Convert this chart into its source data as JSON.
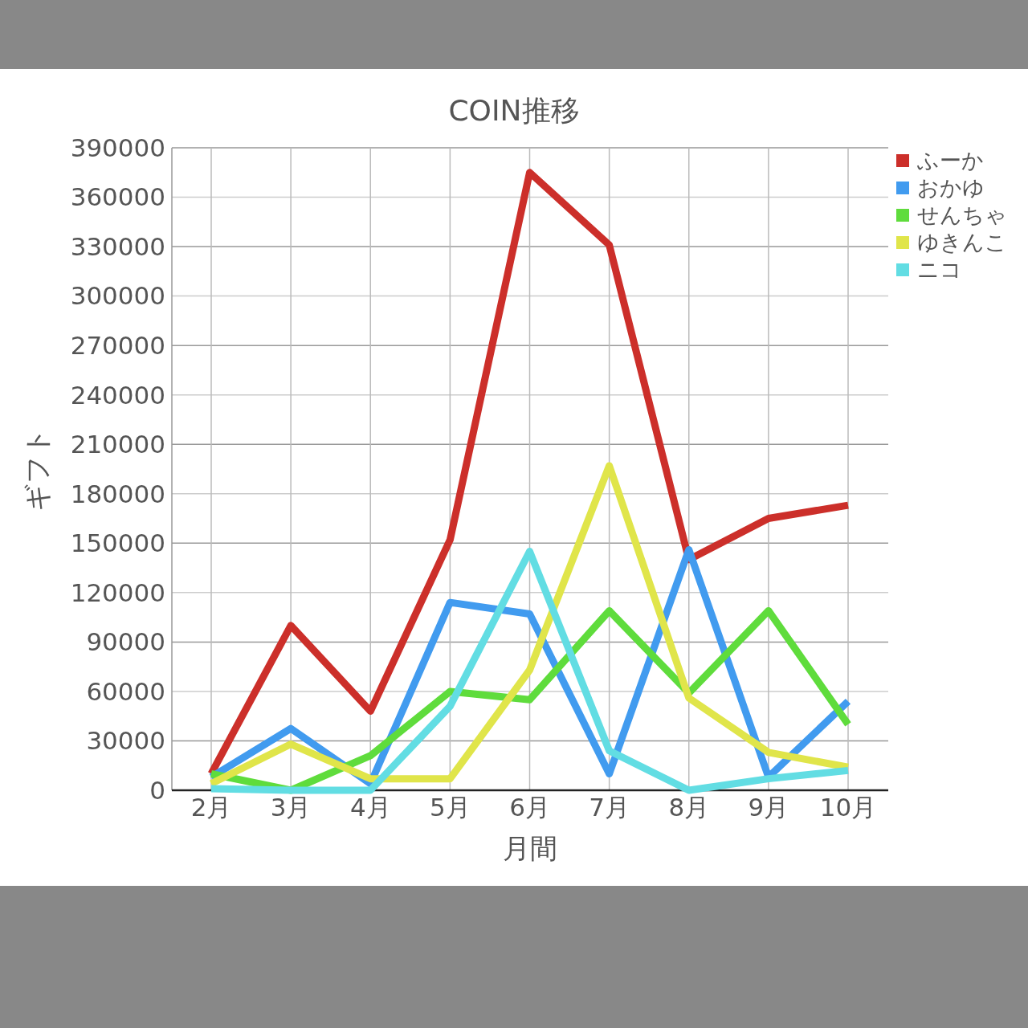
{
  "chart_data": {
    "type": "line",
    "title": "COIN推移",
    "xlabel": "月間",
    "ylabel": "ギフト",
    "categories": [
      "2月",
      "3月",
      "4月",
      "5月",
      "6月",
      "7月",
      "8月",
      "9月",
      "10月"
    ],
    "series": [
      {
        "name": "ふーか",
        "color": "#cc2f2a",
        "values": [
          10000,
          100000,
          48000,
          152000,
          375000,
          331000,
          140000,
          165000,
          173000
        ]
      },
      {
        "name": "おかゆ",
        "color": "#419bef",
        "values": [
          8000,
          37500,
          4000,
          114000,
          107000,
          10000,
          146000,
          8000,
          54000
        ]
      },
      {
        "name": "せんちゃ",
        "color": "#5fdc3c",
        "values": [
          10000,
          0,
          21000,
          60000,
          55000,
          109000,
          59000,
          109000,
          40000
        ]
      },
      {
        "name": "ゆきんこ",
        "color": "#e0e54a",
        "values": [
          4000,
          28000,
          7000,
          7000,
          73000,
          197000,
          56000,
          23000,
          14000
        ]
      },
      {
        "name": "ニコ",
        "color": "#62dde3",
        "values": [
          1000,
          0,
          0,
          51000,
          145000,
          24000,
          0,
          7000,
          12000
        ]
      }
    ],
    "ylim": [
      0,
      390000
    ],
    "yticks": [
      0,
      30000,
      60000,
      90000,
      120000,
      150000,
      180000,
      210000,
      240000,
      270000,
      300000,
      330000,
      360000,
      390000
    ],
    "grid": true,
    "legend": "top right",
    "line_style": "solid",
    "marker": "none"
  }
}
